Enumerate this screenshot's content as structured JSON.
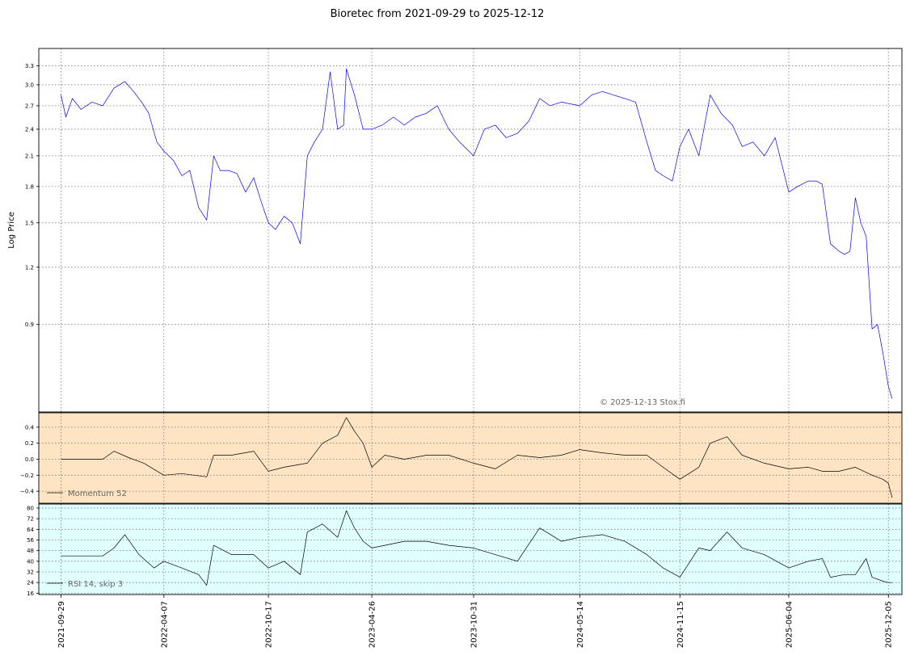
{
  "chart_data": [
    {
      "type": "line",
      "panel": "price",
      "title": "Bioretec from 2021-09-29 to 2025-12-12",
      "ylabel": "Log Price",
      "yscale": "log",
      "ylim": [
        0.58,
        3.6
      ],
      "yticks": [
        0.9,
        1.2,
        1.5,
        1.8,
        2.1,
        2.4,
        2.7,
        3.0,
        3.3
      ],
      "ytick_labels": [
        "0.9",
        "1.2",
        "1.5",
        "1.8",
        "2.1",
        "2.4",
        "2.7",
        "3.0",
        "3.3"
      ],
      "xlim": [
        "2021-08-19",
        "2025-12-30"
      ],
      "xticks": [
        "2021-09-29",
        "2022-04-07",
        "2022-10-17",
        "2023-04-26",
        "2023-10-31",
        "2024-05-14",
        "2024-11-15",
        "2025-06-04",
        "2025-12-05"
      ],
      "grid": true,
      "color": "#0000ff",
      "annotation": "© 2025-12-13 Stox.fi",
      "series": [
        {
          "x": [
            "2021-09-29",
            "2021-10-08",
            "2021-10-20",
            "2021-11-05",
            "2021-11-25",
            "2021-12-15",
            "2022-01-05",
            "2022-01-25",
            "2022-02-10",
            "2022-02-25",
            "2022-03-10",
            "2022-03-25",
            "2022-04-07",
            "2022-04-25",
            "2022-05-10",
            "2022-05-25",
            "2022-06-10",
            "2022-06-25",
            "2022-07-08",
            "2022-07-20",
            "2022-08-05",
            "2022-08-20",
            "2022-09-05",
            "2022-09-20",
            "2022-10-05",
            "2022-10-17",
            "2022-10-30",
            "2022-11-15",
            "2022-11-30",
            "2022-12-15",
            "2022-12-28",
            "2023-01-10",
            "2023-01-25",
            "2023-02-08",
            "2023-02-22",
            "2023-03-05",
            "2023-03-10",
            "2023-03-25",
            "2023-04-10",
            "2023-04-26",
            "2023-05-15",
            "2023-06-05",
            "2023-06-25",
            "2023-07-15",
            "2023-08-05",
            "2023-08-25",
            "2023-09-15",
            "2023-10-05",
            "2023-10-31",
            "2023-11-20",
            "2023-12-10",
            "2023-12-30",
            "2024-01-20",
            "2024-02-10",
            "2024-03-01",
            "2024-03-20",
            "2024-04-10",
            "2024-05-14",
            "2024-06-05",
            "2024-06-25",
            "2024-07-15",
            "2024-08-05",
            "2024-08-25",
            "2024-09-15",
            "2024-10-01",
            "2024-10-15",
            "2024-11-01",
            "2024-11-15",
            "2024-12-01",
            "2024-12-20",
            "2025-01-10",
            "2025-01-30",
            "2025-02-20",
            "2025-03-10",
            "2025-03-30",
            "2025-04-20",
            "2025-05-10",
            "2025-06-04",
            "2025-06-20",
            "2025-07-10",
            "2025-07-25",
            "2025-08-05",
            "2025-08-20",
            "2025-09-05",
            "2025-09-15",
            "2025-09-25",
            "2025-10-05",
            "2025-10-15",
            "2025-10-25",
            "2025-11-05",
            "2025-11-15",
            "2025-11-25",
            "2025-12-05",
            "2025-12-12"
          ],
          "y": [
            2.85,
            2.55,
            2.8,
            2.65,
            2.75,
            2.7,
            2.95,
            3.05,
            2.9,
            2.75,
            2.6,
            2.25,
            2.15,
            2.05,
            1.9,
            1.95,
            1.62,
            1.52,
            2.1,
            1.95,
            1.95,
            1.92,
            1.75,
            1.88,
            1.65,
            1.5,
            1.45,
            1.55,
            1.5,
            1.35,
            2.1,
            2.25,
            2.4,
            3.2,
            2.4,
            2.45,
            3.25,
            2.85,
            2.4,
            2.4,
            2.45,
            2.55,
            2.45,
            2.55,
            2.6,
            2.7,
            2.4,
            2.25,
            2.1,
            2.4,
            2.45,
            2.3,
            2.35,
            2.5,
            2.8,
            2.7,
            2.75,
            2.7,
            2.85,
            2.9,
            2.85,
            2.8,
            2.75,
            2.25,
            1.95,
            1.9,
            1.85,
            2.2,
            2.4,
            2.1,
            2.85,
            2.6,
            2.45,
            2.2,
            2.25,
            2.1,
            2.3,
            1.75,
            1.8,
            1.85,
            1.85,
            1.82,
            1.35,
            1.3,
            1.28,
            1.3,
            1.7,
            1.5,
            1.4,
            0.88,
            0.9,
            0.78,
            0.66,
            0.62
          ]
        }
      ]
    },
    {
      "type": "line",
      "panel": "momentum",
      "ylim": [
        -0.55,
        0.58
      ],
      "yticks": [
        -0.4,
        -0.2,
        0.0,
        0.2,
        0.4
      ],
      "ytick_labels": [
        "−0.4",
        "−0.2",
        "0.0",
        "0.2",
        "0.4"
      ],
      "grid": true,
      "background": "#ffe4c4",
      "color": "#000000",
      "series": [
        {
          "name": "Momentum 52",
          "x": [
            "2021-09-29",
            "2021-12-15",
            "2022-01-05",
            "2022-02-01",
            "2022-03-01",
            "2022-04-07",
            "2022-05-10",
            "2022-06-25",
            "2022-07-08",
            "2022-08-10",
            "2022-09-20",
            "2022-10-17",
            "2022-11-15",
            "2022-12-28",
            "2023-01-25",
            "2023-02-22",
            "2023-03-10",
            "2023-03-25",
            "2023-04-10",
            "2023-04-26",
            "2023-05-20",
            "2023-06-25",
            "2023-08-05",
            "2023-09-15",
            "2023-10-31",
            "2023-12-10",
            "2024-01-20",
            "2024-03-01",
            "2024-04-10",
            "2024-05-14",
            "2024-06-25",
            "2024-08-05",
            "2024-09-15",
            "2024-10-15",
            "2024-11-15",
            "2024-12-20",
            "2025-01-10",
            "2025-02-10",
            "2025-03-10",
            "2025-04-20",
            "2025-06-04",
            "2025-07-10",
            "2025-08-05",
            "2025-09-05",
            "2025-10-05",
            "2025-11-05",
            "2025-11-25",
            "2025-12-05",
            "2025-12-12"
          ],
          "y": [
            0.0,
            0.0,
            0.1,
            0.02,
            -0.05,
            -0.2,
            -0.18,
            -0.22,
            0.05,
            0.05,
            0.1,
            -0.15,
            -0.1,
            -0.05,
            0.2,
            0.3,
            0.52,
            0.35,
            0.2,
            -0.1,
            0.05,
            0.0,
            0.05,
            0.05,
            -0.05,
            -0.12,
            0.05,
            0.02,
            0.05,
            0.12,
            0.08,
            0.05,
            0.05,
            -0.1,
            -0.25,
            -0.1,
            0.2,
            0.28,
            0.05,
            -0.05,
            -0.12,
            -0.1,
            -0.15,
            -0.15,
            -0.1,
            -0.2,
            -0.25,
            -0.3,
            -0.48
          ]
        }
      ]
    },
    {
      "type": "line",
      "panel": "rsi",
      "ylim": [
        15,
        83
      ],
      "yticks": [
        16,
        24,
        32,
        40,
        48,
        56,
        64,
        72,
        80
      ],
      "ytick_labels": [
        "16",
        "24",
        "32",
        "40",
        "48",
        "56",
        "64",
        "72",
        "80"
      ],
      "grid": true,
      "background": "#e0ffff",
      "color": "#000000",
      "series": [
        {
          "name": "RSI 14, skip 3",
          "x": [
            "2021-09-29",
            "2021-12-15",
            "2022-01-05",
            "2022-01-25",
            "2022-02-20",
            "2022-03-20",
            "2022-04-07",
            "2022-05-10",
            "2022-06-10",
            "2022-06-25",
            "2022-07-08",
            "2022-08-10",
            "2022-09-20",
            "2022-10-17",
            "2022-11-15",
            "2022-12-15",
            "2022-12-28",
            "2023-01-25",
            "2023-02-22",
            "2023-03-10",
            "2023-03-25",
            "2023-04-10",
            "2023-04-26",
            "2023-05-20",
            "2023-06-25",
            "2023-08-05",
            "2023-09-15",
            "2023-10-31",
            "2023-12-10",
            "2024-01-20",
            "2024-03-01",
            "2024-04-10",
            "2024-05-14",
            "2024-06-25",
            "2024-08-05",
            "2024-09-15",
            "2024-10-15",
            "2024-11-15",
            "2024-12-20",
            "2025-01-10",
            "2025-02-10",
            "2025-03-10",
            "2025-04-20",
            "2025-06-04",
            "2025-07-10",
            "2025-08-05",
            "2025-08-20",
            "2025-09-15",
            "2025-10-05",
            "2025-10-25",
            "2025-11-05",
            "2025-11-25",
            "2025-12-05",
            "2025-12-12"
          ],
          "y": [
            44,
            44,
            50,
            60,
            45,
            35,
            40,
            35,
            30,
            22,
            52,
            45,
            45,
            35,
            40,
            30,
            62,
            68,
            58,
            78,
            65,
            55,
            50,
            52,
            55,
            55,
            52,
            50,
            45,
            40,
            65,
            55,
            58,
            60,
            55,
            45,
            35,
            28,
            50,
            48,
            62,
            50,
            45,
            35,
            40,
            42,
            28,
            30,
            30,
            42,
            28,
            25,
            24,
            24
          ]
        }
      ]
    }
  ]
}
